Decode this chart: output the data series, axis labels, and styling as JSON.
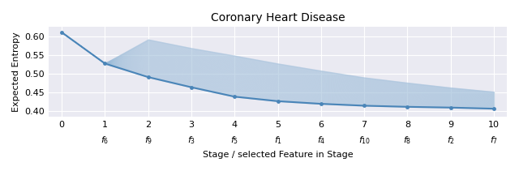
{
  "title": "Coronary Heart Disease",
  "xlabel": "Stage / selected Feature in Stage",
  "ylabel": "Expected Entropy",
  "main_line_y": [
    0.61,
    0.527,
    0.491,
    0.464,
    0.439,
    0.427,
    0.42,
    0.415,
    0.412,
    0.41,
    0.407
  ],
  "upper_band_y": [
    0.61,
    0.527,
    0.591,
    0.568,
    0.548,
    0.527,
    0.508,
    0.49,
    0.476,
    0.463,
    0.452
  ],
  "lower_band_y": [
    0.61,
    0.527,
    0.491,
    0.464,
    0.439,
    0.427,
    0.42,
    0.415,
    0.412,
    0.41,
    0.407
  ],
  "x_values": [
    0,
    1,
    2,
    3,
    4,
    5,
    6,
    7,
    8,
    9,
    10
  ],
  "tick_labels_top": [
    "0",
    "1",
    "2",
    "3",
    "4",
    "5",
    "6",
    "7",
    "8",
    "9",
    "10"
  ],
  "tick_labels_bottom": [
    "",
    "$f_6$",
    "$f_9$",
    "$f_3$",
    "$f_5$",
    "$f_1$",
    "$f_4$",
    "$f_{10}$",
    "$f_8$",
    "$f_2$",
    "$f_7$"
  ],
  "ylim": [
    0.385,
    0.625
  ],
  "yticks": [
    0.4,
    0.45,
    0.5,
    0.55,
    0.6
  ],
  "main_color": "#4a85b8",
  "band_color": "#a8c3dd",
  "band_alpha": 0.55,
  "fan_color": "#7aadd4",
  "fan_alpha": 0.12,
  "fan_linewidth": 0.35,
  "num_fan_lines": 120,
  "figsize": [
    6.4,
    2.11
  ],
  "dpi": 100,
  "bg_color": "#eaeaf2",
  "grid_color": "white",
  "title_fontsize": 10,
  "label_fontsize": 8,
  "tick_fontsize": 8
}
